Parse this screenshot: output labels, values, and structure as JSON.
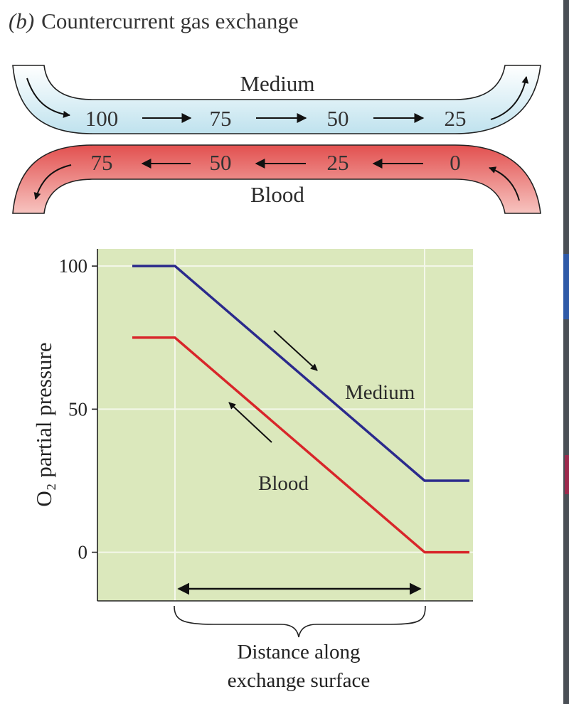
{
  "title": {
    "letter": "(b)",
    "text": "Countercurrent gas exchange"
  },
  "flow_diagram": {
    "medium": {
      "label": "Medium",
      "values": [
        "100",
        "75",
        "50",
        "25"
      ],
      "color": "#cfe9f2"
    },
    "blood": {
      "label": "Blood",
      "values": [
        "75",
        "50",
        "25",
        "0"
      ],
      "color": "#e75f5f"
    }
  },
  "chart_data": {
    "type": "line",
    "ylabel": "O₂ partial pressure",
    "xlabel": [
      "Distance along",
      "exchange surface"
    ],
    "yticks": [
      "100",
      "50",
      "0"
    ],
    "ylim": [
      -17,
      106
    ],
    "grid": true,
    "background": "#dbe8bc",
    "series": [
      {
        "name": "Medium",
        "color": "#2b2a8c",
        "x": [
          0,
          1,
          7,
          8
        ],
        "y": [
          100,
          100,
          25,
          25
        ]
      },
      {
        "name": "Blood",
        "color": "#d8262a",
        "x": [
          0,
          1,
          7,
          8
        ],
        "y": [
          75,
          75,
          0,
          0
        ]
      }
    ]
  }
}
